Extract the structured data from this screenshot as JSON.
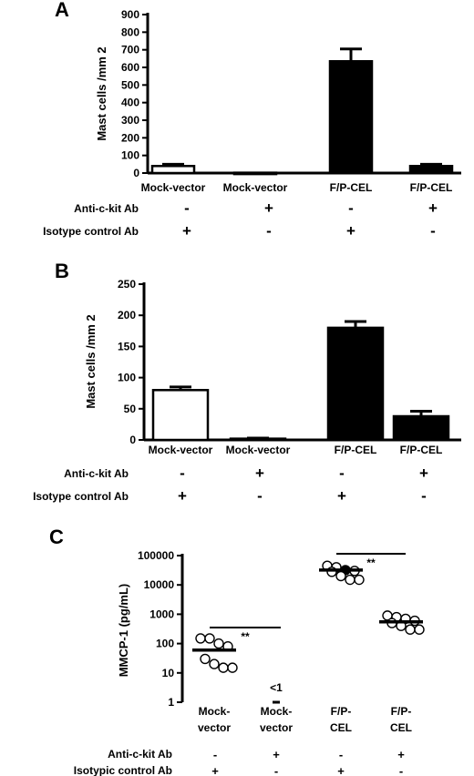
{
  "chart_data": [
    {
      "panel": "A",
      "type": "bar",
      "ylabel": "Mast cells /mm 2",
      "ylim": [
        0,
        900
      ],
      "yticks": [
        0,
        100,
        200,
        300,
        400,
        500,
        600,
        700,
        800,
        900
      ],
      "categories": [
        "Mock-vector",
        "Mock-vector",
        "F/P-CEL",
        "F/P-CEL"
      ],
      "values": [
        40,
        2,
        635,
        40
      ],
      "errors": [
        10,
        0,
        70,
        10
      ],
      "fills": [
        "#ffffff",
        "#ffffff",
        "#000000",
        "#000000"
      ],
      "rows": [
        {
          "label": "Anti-c-kit Ab",
          "signs": [
            "-",
            "+",
            "-",
            "+"
          ]
        },
        {
          "label": "Isotype control Ab",
          "signs": [
            "+",
            "-",
            "+",
            "-"
          ]
        }
      ]
    },
    {
      "panel": "B",
      "type": "bar",
      "ylabel": "Mast cells /mm 2",
      "ylim": [
        0,
        250
      ],
      "yticks": [
        0,
        50,
        100,
        150,
        200,
        250
      ],
      "categories": [
        "Mock-vector",
        "Mock-vector",
        "F/P-CEL",
        "F/P-CEL"
      ],
      "values": [
        80,
        2,
        180,
        38
      ],
      "errors": [
        5,
        1,
        10,
        8
      ],
      "fills": [
        "#ffffff",
        "#ffffff",
        "#000000",
        "#000000"
      ],
      "rows": [
        {
          "label": "Anti-c-kit Ab",
          "signs": [
            "-",
            "+",
            "-",
            "+"
          ]
        },
        {
          "label": "Isotype control Ab",
          "signs": [
            "+",
            "-",
            "+",
            "-"
          ]
        }
      ]
    },
    {
      "panel": "C",
      "type": "scatter",
      "ylabel": "MMCP-1 (pg/mL)",
      "yscale": "log",
      "ylim": [
        1,
        100000
      ],
      "yticks": [
        1,
        10,
        100,
        1000,
        10000,
        100000
      ],
      "categories": [
        "Mock-vector",
        "Mock-vector",
        "F/P-CEL",
        "F/P-CEL"
      ],
      "groups": [
        {
          "points": [
            150,
            150,
            100,
            80,
            30,
            20,
            15,
            15
          ],
          "median": 60,
          "filled": false
        },
        {
          "points": [],
          "median": 1,
          "filled": false,
          "note": "<1"
        },
        {
          "points": [
            45000,
            40000,
            32000,
            30000,
            28000,
            20000,
            15000,
            15000
          ],
          "median": 32000,
          "filled": false,
          "filled_index": 2
        },
        {
          "points": [
            900,
            800,
            700,
            600,
            500,
            400,
            300,
            300
          ],
          "median": 550,
          "filled": false
        }
      ],
      "significance": [
        {
          "from": 0,
          "to": 1,
          "label": "**"
        },
        {
          "from": 2,
          "to": 3,
          "label": "**"
        }
      ],
      "rows": [
        {
          "label": "Anti-c-kit Ab",
          "signs": [
            "-",
            "+",
            "-",
            "+"
          ]
        },
        {
          "label": "Isotypic control Ab",
          "signs": [
            "+",
            "-",
            "+",
            "-"
          ]
        }
      ]
    }
  ]
}
